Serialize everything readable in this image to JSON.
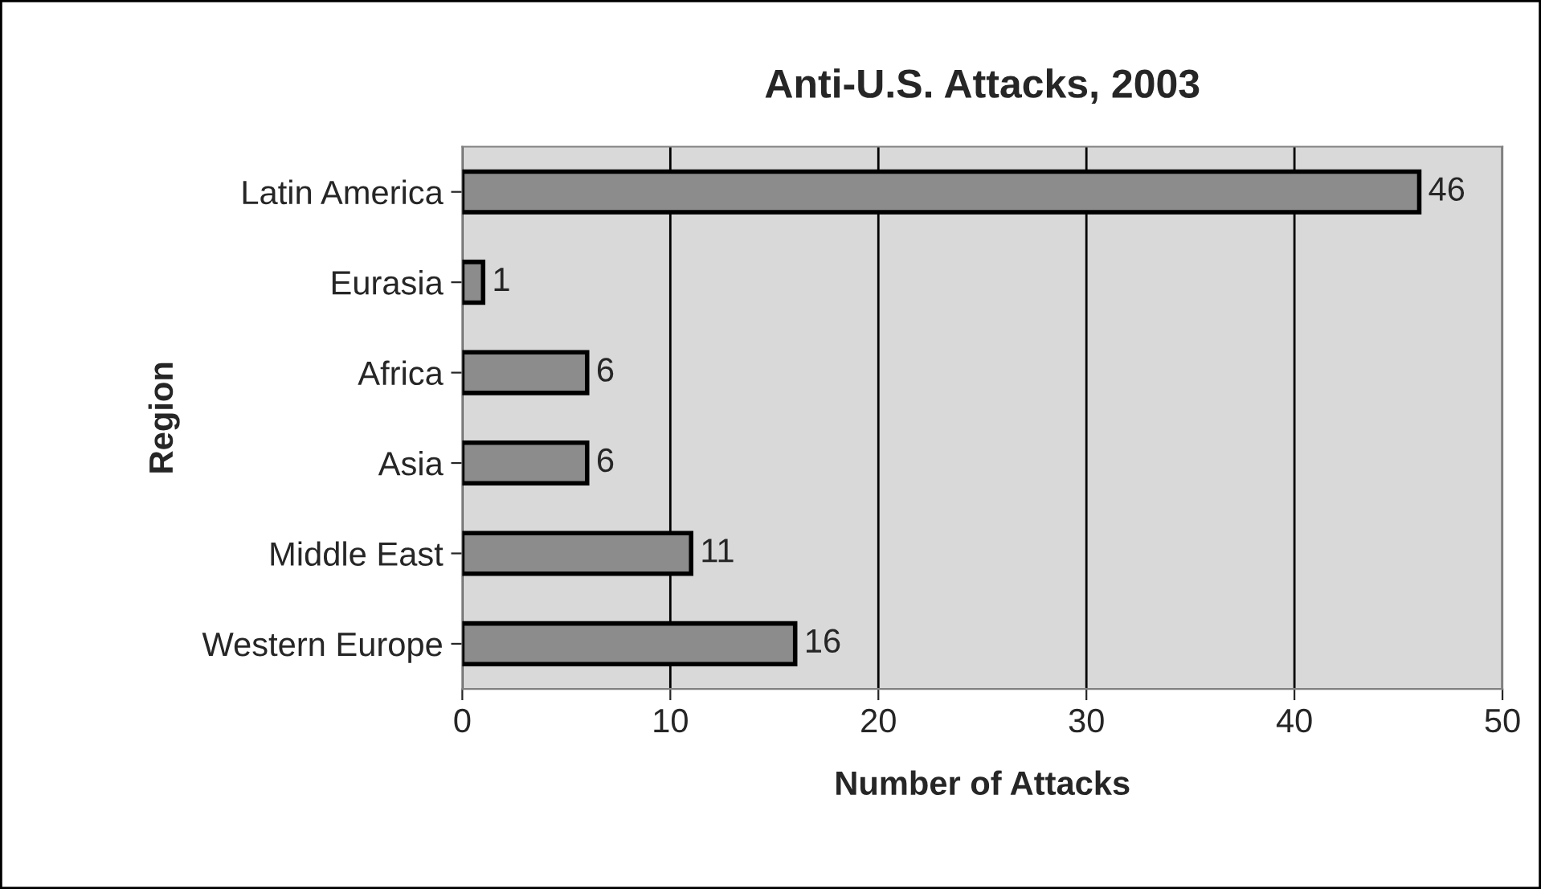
{
  "chart_data": {
    "type": "bar",
    "orientation": "horizontal",
    "title": "Anti-U.S. Attacks, 2003",
    "xlabel": "Number of Attacks",
    "ylabel": "Region",
    "categories": [
      "Latin America",
      "Eurasia",
      "Africa",
      "Asia",
      "Middle East",
      "Western Europe"
    ],
    "values": [
      46,
      1,
      6,
      6,
      11,
      16
    ],
    "color": "#8c8c8c",
    "data_labels": true,
    "xlim": [
      0,
      50
    ],
    "xticks": [
      0,
      10,
      20,
      30,
      40,
      50
    ],
    "grid": "x"
  }
}
